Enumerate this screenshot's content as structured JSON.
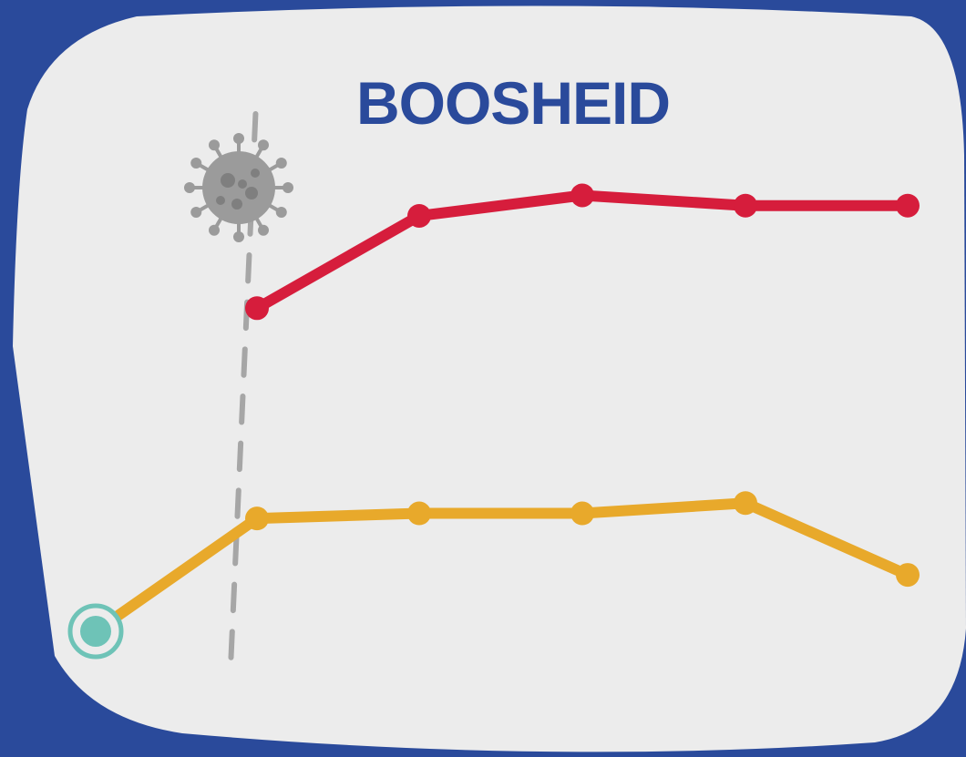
{
  "colors": {
    "background": "#2a4a9b",
    "panel": "#ececec",
    "title": "#2a4a9b",
    "series_red": "#d61d3c",
    "series_orange": "#e8a92b",
    "start_marker": "#6ec3b7",
    "dashed_line": "#a6a6a6",
    "virus": "#9b9b9b"
  },
  "icons": {
    "virus": "virus-icon"
  },
  "chart_data": {
    "type": "line",
    "title": "BOOSHEID",
    "xlabel": "",
    "ylabel": "",
    "grid": false,
    "legend": "none",
    "x": [
      0,
      1,
      2,
      3,
      4,
      5
    ],
    "ylim": [
      0,
      100
    ],
    "series": [
      {
        "color": "#d61d3c",
        "values": [
          null,
          63,
          81,
          85,
          83,
          83
        ]
      },
      {
        "color": "#e8a92b",
        "values": [
          0,
          22,
          23,
          23,
          25,
          11
        ]
      }
    ],
    "annotations": [
      {
        "type": "vertical-dashed-line",
        "x": 0.85,
        "icon": "virus-icon"
      },
      {
        "type": "start-marker",
        "x": 0,
        "y": 0
      }
    ]
  }
}
